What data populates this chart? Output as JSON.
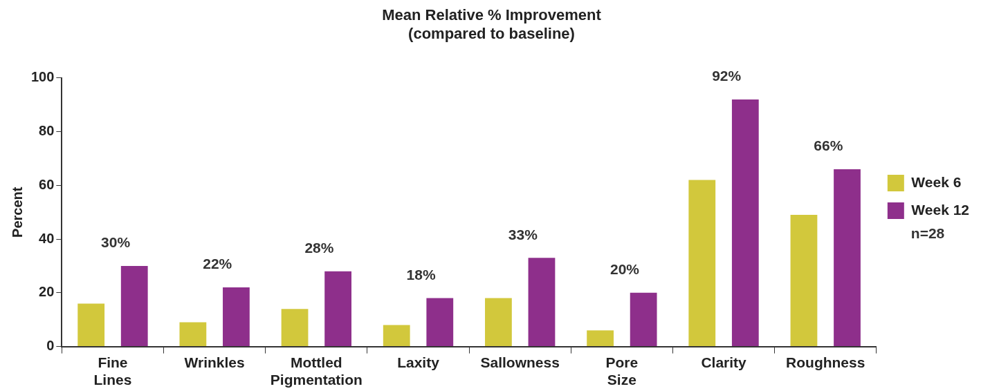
{
  "chart_data": {
    "type": "bar",
    "title": "Mean Relative % Improvement\n(compared to baseline)",
    "ylabel": "Percent",
    "categories": [
      "Fine Lines",
      "Wrinkles",
      "Mottled Pigmentation",
      "Laxity",
      "Sallowness",
      "Pore Size",
      "Clarity",
      "Roughness"
    ],
    "series": [
      {
        "name": "Week 6",
        "color": "#d2c83c",
        "values": [
          16,
          9,
          14,
          8,
          18,
          6,
          62,
          49
        ]
      },
      {
        "name": "Week 12",
        "color": "#8e2f8b",
        "values": [
          30,
          22,
          28,
          18,
          33,
          20,
          92,
          66
        ],
        "value_labels": [
          "30%",
          "22%",
          "28%",
          "18%",
          "33%",
          "20%",
          "92%",
          "66%"
        ]
      }
    ],
    "ylim": [
      0,
      100
    ],
    "yticks": [
      0,
      20,
      40,
      60,
      80,
      100
    ],
    "grid": false,
    "legend": "right",
    "annotations": [
      "n=28"
    ]
  }
}
